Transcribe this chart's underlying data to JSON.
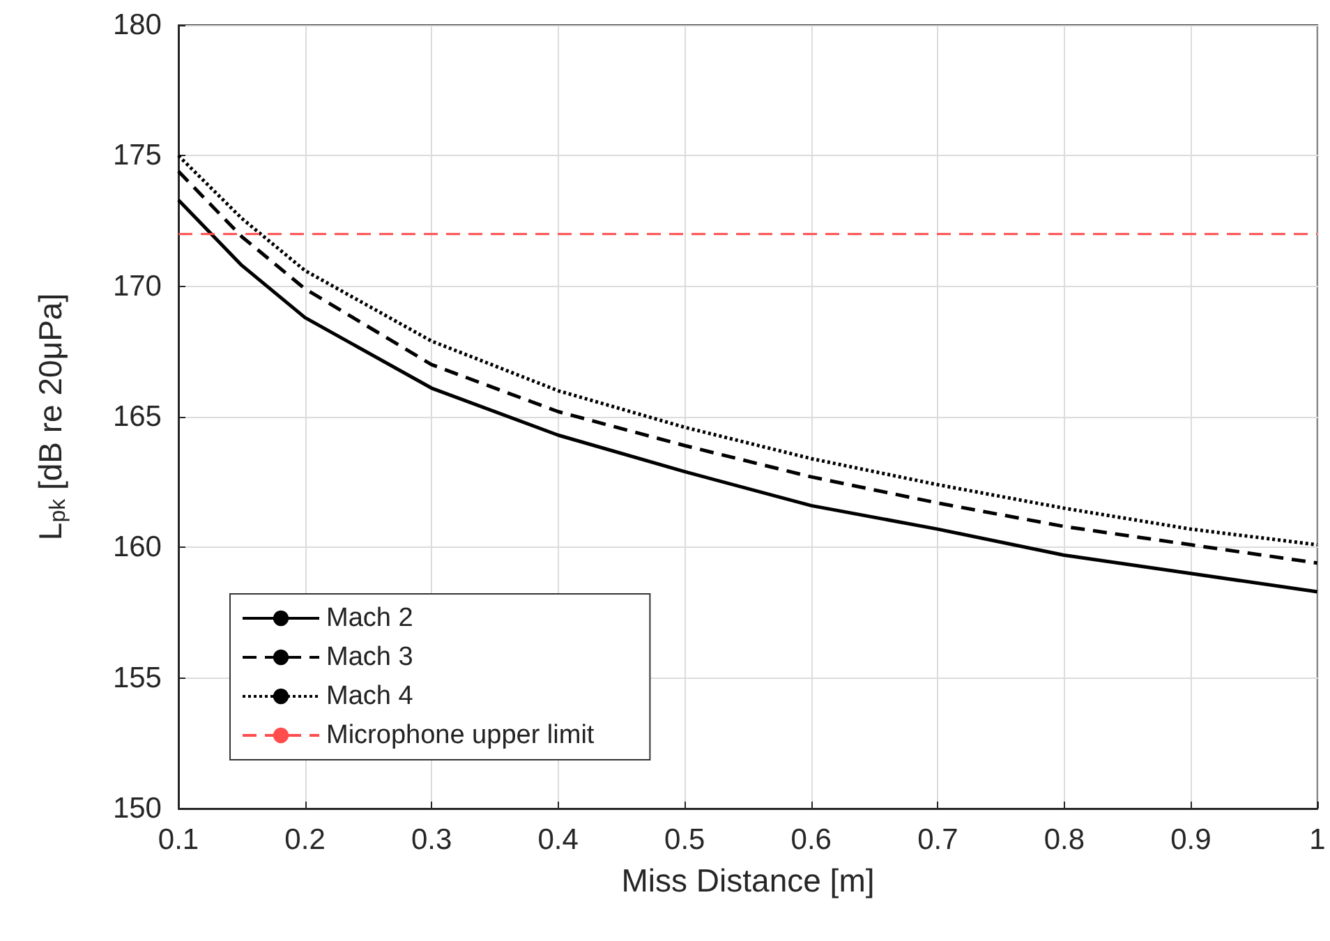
{
  "chart_data": {
    "type": "line",
    "xlabel": "Miss Distance [m]",
    "ylabel": "L$_{pk}$ [dB re 20μPa]",
    "x": [
      0.1,
      0.15,
      0.2,
      0.3,
      0.4,
      0.5,
      0.6,
      0.7,
      0.8,
      0.9,
      1.0
    ],
    "series": [
      {
        "name": "Mach 2",
        "color": "#000000",
        "line_style": "solid",
        "values": [
          173.3,
          170.8,
          168.8,
          166.1,
          164.3,
          162.9,
          161.6,
          160.7,
          159.7,
          159.0,
          158.3
        ]
      },
      {
        "name": "Mach 3",
        "color": "#000000",
        "line_style": "dashed",
        "values": [
          174.4,
          171.9,
          169.9,
          167.0,
          165.2,
          163.9,
          162.7,
          161.7,
          160.8,
          160.1,
          159.4
        ]
      },
      {
        "name": "Mach 4",
        "color": "#000000",
        "line_style": "dotted",
        "values": [
          175.0,
          172.6,
          170.6,
          167.9,
          166.0,
          164.6,
          163.4,
          162.4,
          161.5,
          160.7,
          160.1
        ]
      }
    ],
    "ref_lines": [
      {
        "axis": "y",
        "value": 172,
        "label": "Microphone upper limit",
        "color": "#ff4d4d",
        "line_style": "dashed"
      }
    ],
    "xlim": [
      0.1,
      1
    ],
    "xticks": [
      0.1,
      0.2,
      0.3,
      0.4,
      0.5,
      0.6,
      0.7,
      0.8,
      0.9,
      1
    ],
    "ylim": [
      150,
      180
    ],
    "yticks": [
      150,
      155,
      160,
      165,
      170,
      175,
      180
    ],
    "grid": true,
    "legend": "bottom left",
    "marker": "none"
  }
}
